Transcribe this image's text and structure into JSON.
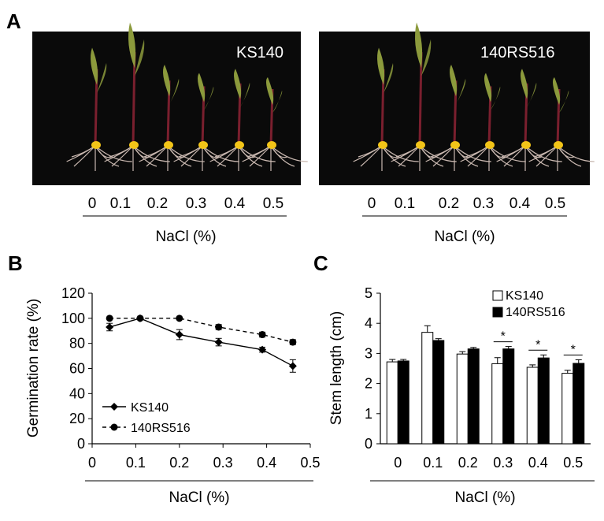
{
  "panel_a": {
    "letter": "A",
    "photos": [
      {
        "label": "KS140",
        "doses": [
          "0",
          "0.1",
          "0.2",
          "0.3",
          "0.4",
          "0.5"
        ],
        "xlabel": "NaCl (%)"
      },
      {
        "label": "140RS516",
        "doses": [
          "0",
          "0.1",
          "0.2",
          "0.3",
          "0.4",
          "0.5"
        ],
        "xlabel": "NaCl (%)"
      }
    ],
    "colors": {
      "background": "#0a0a0a",
      "leaf": "#8c9a3c",
      "stem": "#7a1f2e",
      "root": "#c9b8b0",
      "seed": "#f2c418"
    }
  },
  "chart_data": [
    {
      "panel": "B",
      "type": "line",
      "title": "",
      "xlabel": "NaCl (%)",
      "ylabel": "Germination rate (%)",
      "xlim": [
        0,
        0.5
      ],
      "ylim": [
        0,
        120
      ],
      "xticks": [
        "0",
        "0.1",
        "0.2",
        "0.3",
        "0.4",
        "0.5"
      ],
      "yticks": [
        "0",
        "20",
        "40",
        "60",
        "80",
        "100",
        "120"
      ],
      "grid": false,
      "legend_position": "bottom-left",
      "series": [
        {
          "name": "KS140",
          "style": "solid",
          "marker": "diamond",
          "color": "#000000",
          "x": [
            0.04,
            0.11,
            0.2,
            0.29,
            0.39,
            0.46
          ],
          "y": [
            93,
            100,
            87,
            81,
            75,
            62
          ],
          "err": [
            3,
            0,
            4,
            3,
            2,
            5
          ]
        },
        {
          "name": "140RS516",
          "style": "dashed",
          "marker": "circle",
          "color": "#000000",
          "x": [
            0.04,
            0.11,
            0.2,
            0.29,
            0.39,
            0.46
          ],
          "y": [
            100,
            100,
            100,
            93,
            87,
            81
          ],
          "err": [
            0,
            0,
            0,
            2,
            2,
            2
          ]
        }
      ]
    },
    {
      "panel": "C",
      "type": "bar",
      "title": "",
      "xlabel": "NaCl (%)",
      "ylabel": "Stem length (cm)",
      "categories": [
        "0",
        "0.1",
        "0.2",
        "0.3",
        "0.4",
        "0.5"
      ],
      "ylim": [
        0,
        5
      ],
      "yticks": [
        "0",
        "1",
        "2",
        "3",
        "4",
        "5"
      ],
      "grid": false,
      "legend_position": "top-right",
      "series": [
        {
          "name": "KS140",
          "fill": "#ffffff",
          "values": [
            2.72,
            3.7,
            2.98,
            2.66,
            2.54,
            2.34
          ],
          "err": [
            0.08,
            0.22,
            0.08,
            0.2,
            0.08,
            0.1
          ]
        },
        {
          "name": "140RS516",
          "fill": "#000000",
          "values": [
            2.75,
            3.43,
            3.15,
            3.15,
            2.85,
            2.67
          ],
          "err": [
            0.05,
            0.06,
            0.05,
            0.08,
            0.1,
            0.12
          ]
        }
      ],
      "significance": [
        "",
        "",
        "",
        "*",
        "*",
        "*"
      ]
    }
  ]
}
